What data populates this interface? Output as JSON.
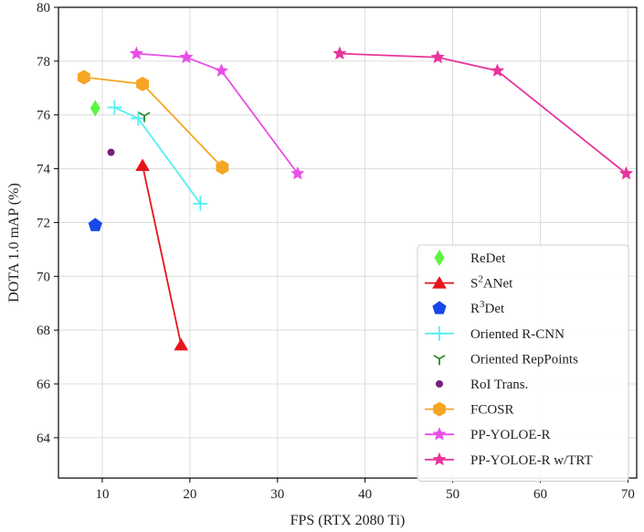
{
  "chart_data": {
    "type": "scatter",
    "title": "",
    "xlabel": "FPS (RTX 2080 Ti)",
    "ylabel": "DOTA 1.0 mAP (%)",
    "xlim": [
      5,
      71
    ],
    "ylim": [
      62.5,
      80
    ],
    "xticks": [
      10,
      20,
      30,
      40,
      50,
      60,
      70
    ],
    "yticks": [
      64,
      66,
      68,
      70,
      72,
      74,
      76,
      78,
      80
    ],
    "grid": true,
    "legend_position": "bottom-right",
    "series": [
      {
        "name": "ReDet",
        "marker": "diamond",
        "color": "#5cf542",
        "line": false,
        "points": [
          [
            9.2,
            76.25
          ]
        ]
      },
      {
        "name": "S²ANet",
        "name_base": "S",
        "name_sup": "2",
        "name_rest": "ANet",
        "marker": "triangle",
        "color": "#e8141c",
        "line": true,
        "points": [
          [
            14.6,
            74.12
          ],
          [
            19.0,
            67.45
          ]
        ]
      },
      {
        "name": "R³Det",
        "name_base": "R",
        "name_sup": "3",
        "name_rest": "Det",
        "marker": "pentagon",
        "color": "#1747e8",
        "line": false,
        "points": [
          [
            9.2,
            71.9
          ]
        ]
      },
      {
        "name": "Oriented R-CNN",
        "marker": "plus",
        "color": "#55f0f0",
        "line": true,
        "points": [
          [
            11.4,
            76.28
          ],
          [
            14.1,
            75.87
          ],
          [
            21.2,
            72.7
          ]
        ]
      },
      {
        "name": "Oriented RepPoints",
        "marker": "tri_down",
        "color": "#2a8a2a",
        "line": false,
        "points": [
          [
            14.8,
            75.97
          ]
        ]
      },
      {
        "name": "RoI Trans.",
        "marker": "circle",
        "color": "#7a1f7a",
        "line": false,
        "points": [
          [
            11.0,
            74.61
          ]
        ]
      },
      {
        "name": "FCOSR",
        "marker": "hexagon",
        "color": "#f5a623",
        "line": true,
        "points": [
          [
            7.9,
            77.4
          ],
          [
            14.6,
            77.15
          ],
          [
            23.7,
            74.05
          ]
        ]
      },
      {
        "name": "PP-YOLOE-R",
        "marker": "star",
        "color": "#e84ee8",
        "line": true,
        "points": [
          [
            13.9,
            78.28
          ],
          [
            19.6,
            78.14
          ],
          [
            23.6,
            77.64
          ],
          [
            32.3,
            73.82
          ]
        ]
      },
      {
        "name": "PP-YOLOE-R w/TRT",
        "marker": "star",
        "color": "#e8349c",
        "line": true,
        "points": [
          [
            37.1,
            78.28
          ],
          [
            48.3,
            78.14
          ],
          [
            55.1,
            77.64
          ],
          [
            69.8,
            73.82
          ]
        ]
      }
    ]
  }
}
